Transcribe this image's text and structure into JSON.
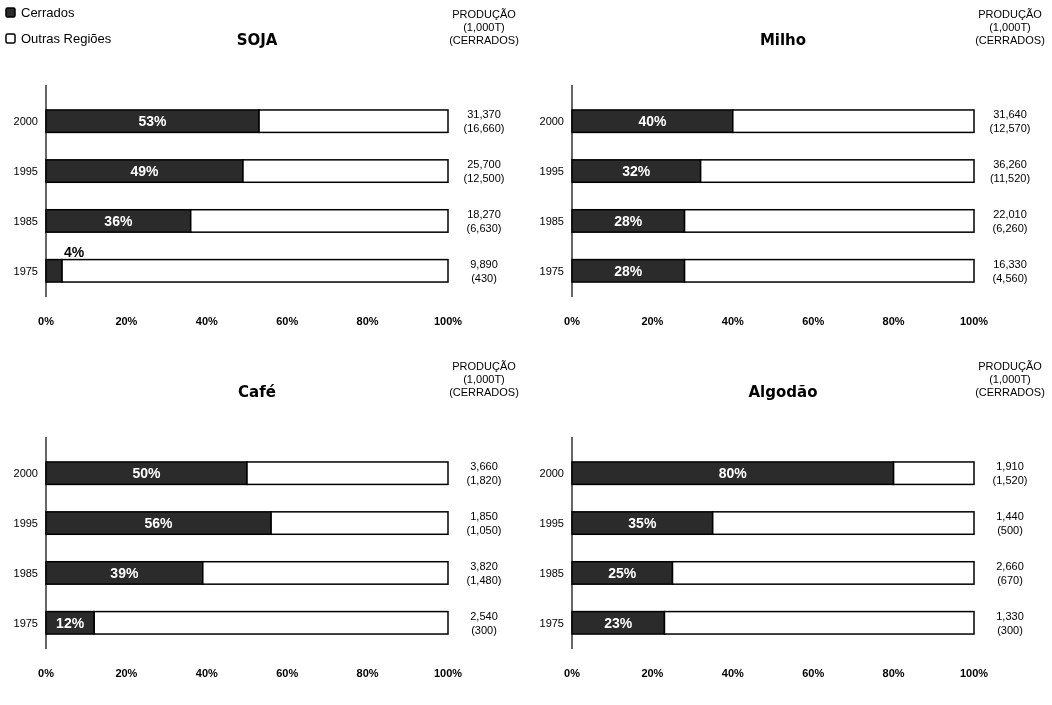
{
  "chart_data": [
    {
      "type": "bar",
      "orientation": "horizontal",
      "stacked": true,
      "title": "SOJA",
      "legend": "top left",
      "categories": [
        "2000",
        "1995",
        "1985",
        "1975"
      ],
      "series": [
        {
          "name": "Cerrados",
          "color": "#2b2b2b",
          "values": [
            53,
            49,
            36,
            4
          ],
          "value_labels": [
            "53%",
            "49%",
            "36%",
            "4%"
          ]
        },
        {
          "name": "Outras Regiões",
          "color": "#ffffff",
          "values": [
            47,
            51,
            64,
            96
          ]
        }
      ],
      "xlim": [
        0,
        100
      ],
      "xticks": [
        {
          "value": 0,
          "label": "0%"
        },
        {
          "value": 20,
          "label": "20%"
        },
        {
          "value": 40,
          "label": "40%"
        },
        {
          "value": 60,
          "label": "60%"
        },
        {
          "value": 80,
          "label": "80%"
        },
        {
          "value": 100,
          "label": "100%"
        }
      ],
      "annotations": [
        "PRODUÇÃO",
        "(1,000T)",
        "(CERRADOS)",
        "31,370",
        "(16,660)",
        "25,700",
        "(12,500)",
        "18,270",
        "(6,630)",
        "9,890",
        "(430)"
      ]
    },
    {
      "type": "bar",
      "orientation": "horizontal",
      "stacked": true,
      "title": "Milho",
      "categories": [
        "2000",
        "1995",
        "1985",
        "1975"
      ],
      "series": [
        {
          "color": "#2b2b2b",
          "values": [
            40,
            32,
            28,
            28
          ],
          "value_labels": [
            "40%",
            "32%",
            "28%",
            "28%"
          ]
        },
        {
          "color": "#ffffff",
          "values": [
            60,
            68,
            72,
            72
          ]
        }
      ],
      "xlim": [
        0,
        100
      ],
      "xticks": [
        {
          "value": 0,
          "label": "0%"
        },
        {
          "value": 20,
          "label": "20%"
        },
        {
          "value": 40,
          "label": "40%"
        },
        {
          "value": 60,
          "label": "60%"
        },
        {
          "value": 80,
          "label": "80%"
        },
        {
          "value": 100,
          "label": "100%"
        }
      ],
      "annotations": [
        "PRODUÇÃO",
        "(1,000T)",
        "(CERRADOS)",
        "31,640",
        "(12,570)",
        "36,260",
        "(11,520)",
        "22,010",
        "(6,260)",
        "16,330",
        "(4,560)"
      ]
    },
    {
      "type": "bar",
      "orientation": "horizontal",
      "stacked": true,
      "title": "Café",
      "categories": [
        "2000",
        "1995",
        "1985",
        "1975"
      ],
      "series": [
        {
          "color": "#2b2b2b",
          "values": [
            50,
            56,
            39,
            12
          ],
          "value_labels": [
            "50%",
            "56%",
            "39%",
            "12%"
          ]
        },
        {
          "color": "#ffffff",
          "values": [
            50,
            44,
            61,
            88
          ]
        }
      ],
      "xlim": [
        0,
        100
      ],
      "xticks": [
        {
          "value": 0,
          "label": "0%"
        },
        {
          "value": 20,
          "label": "20%"
        },
        {
          "value": 40,
          "label": "40%"
        },
        {
          "value": 60,
          "label": "60%"
        },
        {
          "value": 80,
          "label": "80%"
        },
        {
          "value": 100,
          "label": "100%"
        }
      ],
      "annotations": [
        "PRODUÇÃO",
        "(1,000T)",
        "(CERRADOS)",
        "3,660",
        "(1,820)",
        "1,850",
        "(1,050)",
        "3,820",
        "(1,480)",
        "2,540",
        "(300)"
      ]
    },
    {
      "type": "bar",
      "orientation": "horizontal",
      "stacked": true,
      "title": "Algodão",
      "categories": [
        "2000",
        "1995",
        "1985",
        "1975"
      ],
      "series": [
        {
          "color": "#2b2b2b",
          "values": [
            80,
            35,
            25,
            23
          ],
          "value_labels": [
            "80%",
            "35%",
            "25%",
            "23%"
          ]
        },
        {
          "color": "#ffffff",
          "values": [
            20,
            65,
            75,
            77
          ]
        }
      ],
      "xlim": [
        0,
        100
      ],
      "xticks": [
        {
          "value": 0,
          "label": "0%"
        },
        {
          "value": 20,
          "label": "20%"
        },
        {
          "value": 40,
          "label": "40%"
        },
        {
          "value": 60,
          "label": "60%"
        },
        {
          "value": 80,
          "label": "80%"
        },
        {
          "value": 100,
          "label": "100%"
        }
      ],
      "annotations": [
        "PRODUÇÃO",
        "(1,000T)",
        "(CERRADOS)",
        "1,910",
        "(1,520)",
        "1,440",
        "(500)",
        "2,660",
        "(670)",
        "1,330",
        "(300)"
      ]
    }
  ]
}
